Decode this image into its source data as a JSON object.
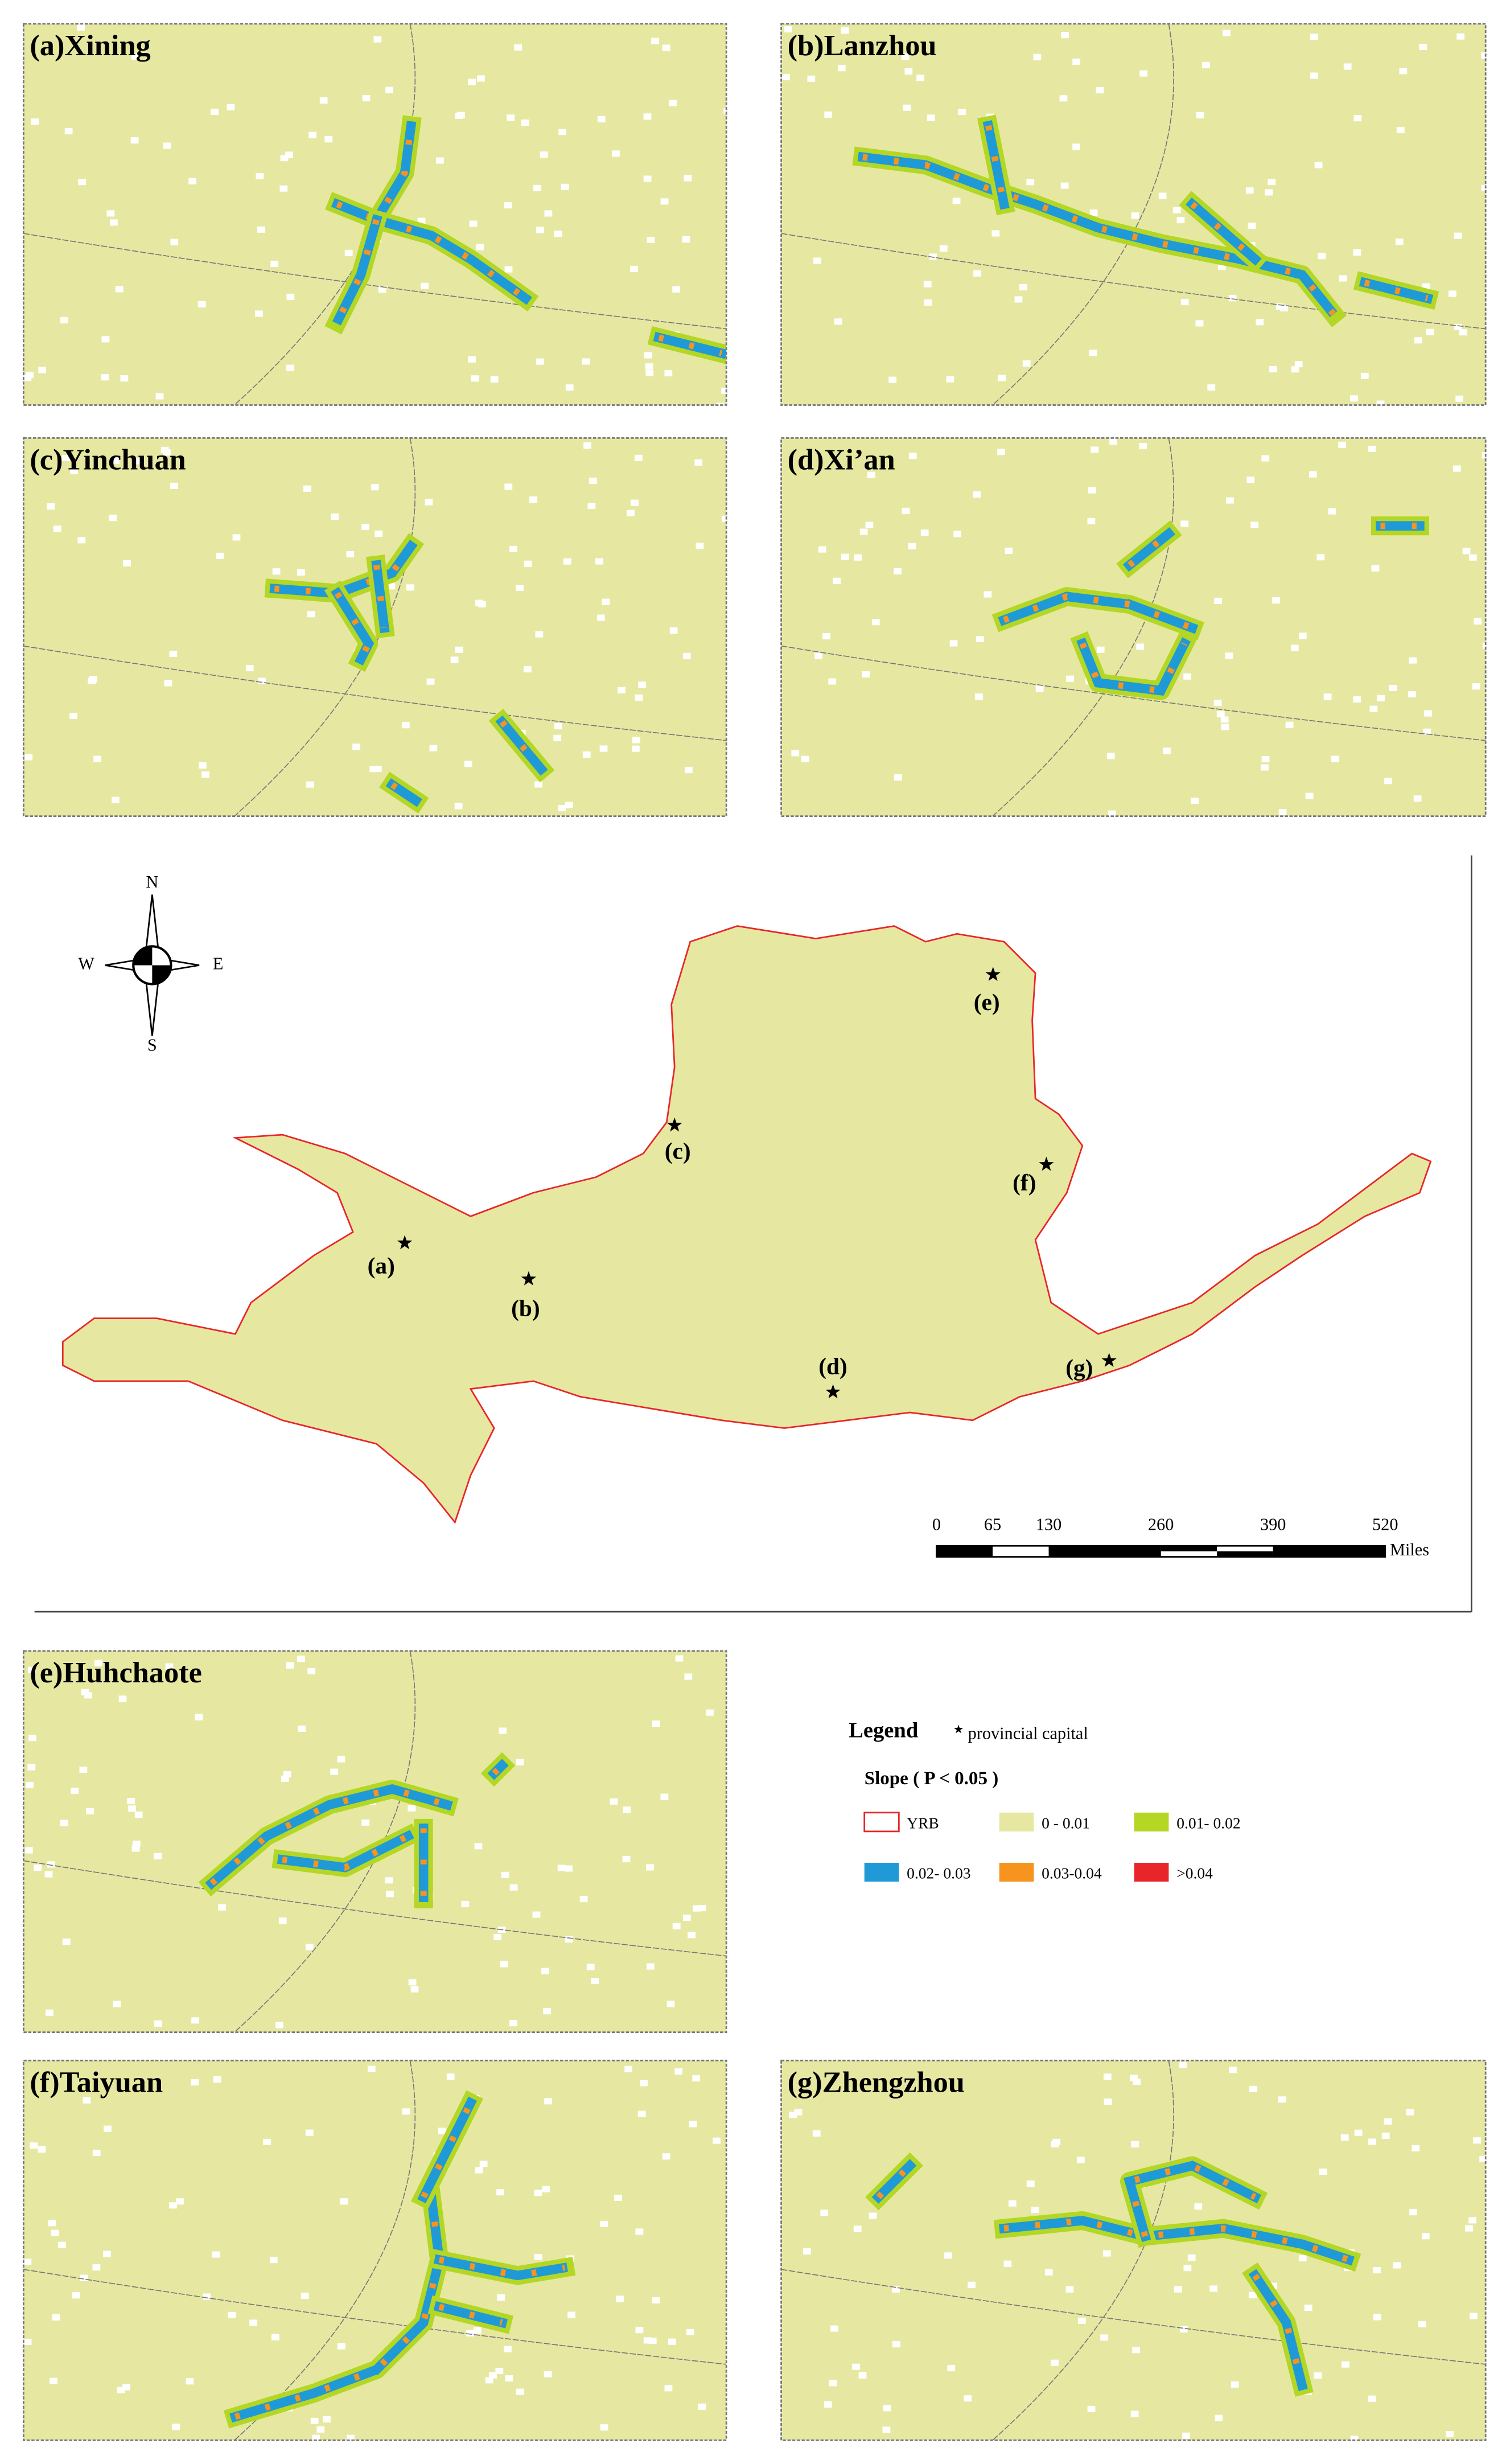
{
  "panels": [
    {
      "title": "(a)Xining"
    },
    {
      "title": "(b)Lanzhou"
    },
    {
      "title": "(c)Yinchuan"
    },
    {
      "title": "(d)Xi’an"
    },
    {
      "title": "(e)Huhchaote"
    },
    {
      "title": "(f)Taiyuan"
    },
    {
      "title": "(g)Zhengzhou"
    }
  ],
  "compass": {
    "n": "N",
    "s": "S",
    "e": "E",
    "w": "W"
  },
  "map_labels": [
    "(a)",
    "(b)",
    "(c)",
    "(d)",
    "(e)",
    "(f)",
    "(g)"
  ],
  "scale": {
    "ticks": [
      0,
      65,
      130,
      260,
      390,
      520
    ],
    "unit": "Miles"
  },
  "legend": {
    "title": "Legend",
    "capital": "provincial capital",
    "subtitle": "Slope ( P < 0.05 )",
    "items": [
      {
        "label": "YRB",
        "color": "#e8262a"
      },
      {
        "label": "0 - 0.01",
        "color": "#e6e8a2"
      },
      {
        "label": "0.01- 0.02",
        "color": "#b4d625"
      },
      {
        "label": "0.02- 0.03",
        "color": "#1f9ad6"
      },
      {
        "label": "0.03-0.04",
        "color": "#f7941d"
      },
      {
        "label": ">0.04",
        "color": "#e8262a"
      }
    ]
  }
}
